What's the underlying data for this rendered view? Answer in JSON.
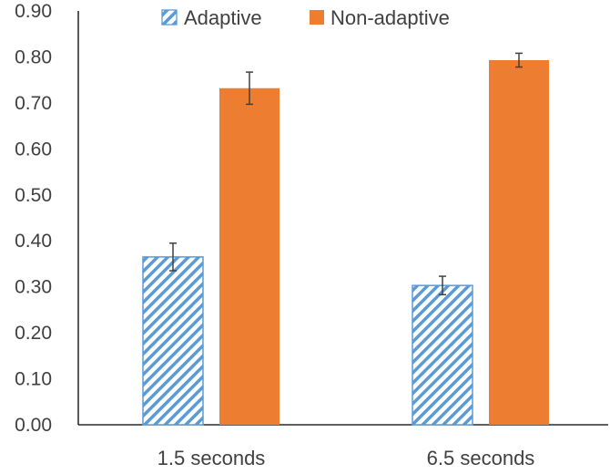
{
  "chart_data": {
    "type": "bar",
    "title": "",
    "xlabel": "",
    "ylabel": "",
    "categories": [
      "1.5 seconds",
      "6.5 seconds"
    ],
    "ylim": [
      0,
      0.9
    ],
    "yticks": [
      "0.00",
      "0.10",
      "0.20",
      "0.30",
      "0.40",
      "0.50",
      "0.60",
      "0.70",
      "0.80",
      "0.90"
    ],
    "grid": false,
    "legend": "top-center",
    "series": [
      {
        "name": "Adaptive",
        "values": [
          0.365,
          0.303
        ],
        "error": [
          0.03,
          0.02
        ],
        "color": "#5B9BD5",
        "pattern": "diagonal-stripes"
      },
      {
        "name": "Non-adaptive",
        "values": [
          0.732,
          0.793
        ],
        "error": [
          0.035,
          0.015
        ],
        "color": "#ED7D31",
        "pattern": "solid"
      }
    ]
  }
}
